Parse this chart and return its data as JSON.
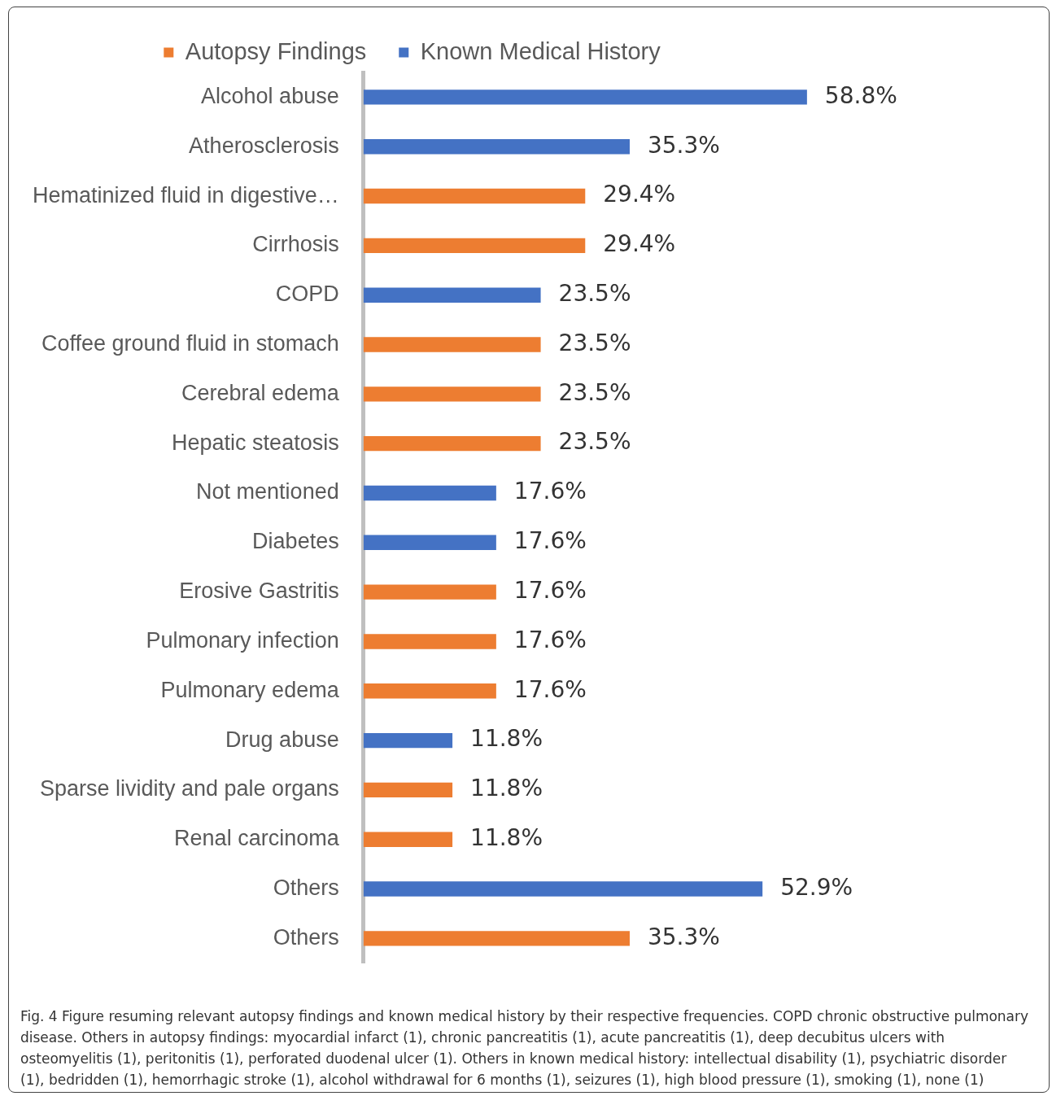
{
  "chart_data": {
    "type": "bar",
    "orientation": "horizontal",
    "categories": [
      "Alcohol abuse",
      "Atherosclerosis",
      "Hematinized fluid in digestive…",
      "Cirrhosis",
      "COPD",
      "Coffee ground fluid in stomach",
      "Cerebral edema",
      "Hepatic steatosis",
      "Not mentioned",
      "Diabetes",
      "Erosive Gastritis",
      "Pulmonary infection",
      "Pulmonary edema",
      "Drug abuse",
      "Sparse lividity and pale organs",
      "Renal carcinoma",
      "Others",
      "Others"
    ],
    "series": [
      {
        "name": "Autopsy Findings",
        "color": "#ed7d31",
        "values": [
          null,
          null,
          29.4,
          29.4,
          null,
          23.5,
          23.5,
          23.5,
          null,
          null,
          17.6,
          17.6,
          17.6,
          null,
          11.8,
          11.8,
          null,
          35.3
        ],
        "value_labels": [
          null,
          null,
          "29.4%",
          "29.4%",
          null,
          "23.5%",
          "23.5%",
          "23.5%",
          null,
          null,
          "17.6%",
          "17.6%",
          "17.6%",
          null,
          "11.8%",
          "11.8%",
          null,
          "35.3%"
        ]
      },
      {
        "name": "Known Medical History",
        "color": "#4472c4",
        "values": [
          58.8,
          35.3,
          null,
          null,
          23.5,
          null,
          null,
          null,
          17.6,
          17.6,
          null,
          null,
          null,
          11.8,
          null,
          null,
          52.9,
          null
        ],
        "value_labels": [
          "58.8%",
          "35.3%",
          null,
          null,
          "23.5%",
          null,
          null,
          null,
          "17.6%",
          "17.6%",
          null,
          null,
          null,
          "11.8%",
          null,
          null,
          "52.9%",
          null
        ]
      }
    ],
    "legend": "top",
    "annotations": [
      "Fig. 4 Figure resuming relevant autopsy findings and known medical history by their respective frequencies. COPD chronic obstructive pulmonary disease. Others in autopsy findings: myocardial infarct (1), chronic pancreatitis (1), acute pancreatitis (1), deep decubitus ulcers with osteomyelitis (1), peritonitis (1), perforated duodenal ulcer (1). Others in known medical history: intellectual disability (1), psychiatric disorder (1), bedridden (1), hemorrhagic stroke (1), alcohol withdrawal for 6 months (1), seizures (1), high blood pressure (1), smoking (1), none (1)"
    ]
  }
}
